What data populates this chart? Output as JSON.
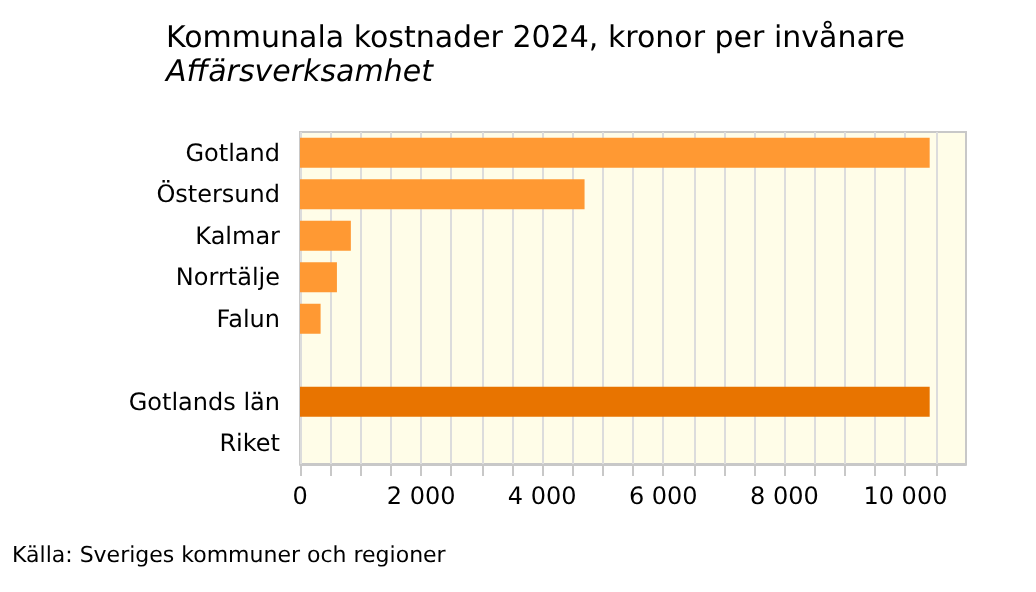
{
  "chart_data": {
    "type": "bar",
    "orientation": "horizontal",
    "title": "Kommunala kostnader 2024, kronor per invånare",
    "subtitle": "Affärsverksamhet",
    "categories": [
      "Gotland",
      "Östersund",
      "Kalmar",
      "Norrtälje",
      "Falun",
      null,
      "Gotlands län",
      "Riket"
    ],
    "values": [
      10400,
      4700,
      840,
      610,
      340,
      null,
      10400,
      0
    ],
    "colors": [
      "#ff9933",
      "#ff9933",
      "#ff9933",
      "#ff9933",
      "#ff9933",
      "#ff9933",
      "#e87400",
      "#ff9933"
    ],
    "xlim": [
      0,
      11000
    ],
    "xticks": [
      0,
      {
        "value": 500,
        "label": null
      },
      {
        "value": 1000,
        "label": null
      },
      {
        "value": 1500,
        "label": null
      },
      {
        "value": 2000,
        "label": "2 000"
      },
      {
        "value": 2500,
        "label": null
      },
      {
        "value": 3000,
        "label": null
      },
      {
        "value": 3500,
        "label": null
      },
      {
        "value": 4000,
        "label": "4 000"
      },
      {
        "value": 4500,
        "label": null
      },
      {
        "value": 5000,
        "label": null
      },
      {
        "value": 5500,
        "label": null
      },
      {
        "value": 6000,
        "label": "6 000"
      },
      {
        "value": 6500,
        "label": null
      },
      {
        "value": 7000,
        "label": null
      },
      {
        "value": 7500,
        "label": null
      },
      {
        "value": 8000,
        "label": "8 000"
      },
      {
        "value": 8500,
        "label": null
      },
      {
        "value": 9000,
        "label": null
      },
      {
        "value": 9500,
        "label": null
      },
      {
        "value": 10000,
        "label": "10 000"
      },
      {
        "value": 10500,
        "label": null
      }
    ],
    "grid": "x",
    "annotations": [
      "Källa: Sveriges kommuner och regioner"
    ]
  }
}
